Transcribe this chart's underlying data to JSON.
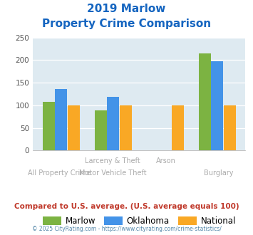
{
  "title_line1": "2019 Marlow",
  "title_line2": "Property Crime Comparison",
  "marlow": [
    107,
    88,
    0,
    215
  ],
  "oklahoma": [
    136,
    119,
    0,
    197
  ],
  "national": [
    100,
    100,
    100,
    100
  ],
  "x_positions": [
    0,
    1,
    2,
    3
  ],
  "x_labels_top": [
    "",
    "Larceny & Theft",
    "Arson",
    ""
  ],
  "x_labels_bottom": [
    "All Property Crime",
    "Motor Vehicle Theft",
    "",
    "Burglary"
  ],
  "colors": {
    "marlow": "#7cb342",
    "oklahoma": "#4393e8",
    "national": "#f9a825"
  },
  "ylim": [
    0,
    250
  ],
  "yticks": [
    0,
    50,
    100,
    150,
    200,
    250
  ],
  "background_color": "#deeaf1",
  "title_color": "#1565c0",
  "xlabel_color": "#aaaaaa",
  "footer_text": "Compared to U.S. average. (U.S. average equals 100)",
  "copyright_text": "© 2025 CityRating.com - https://www.cityrating.com/crime-statistics/",
  "footer_color": "#c0392b",
  "copyright_color": "#5588aa"
}
